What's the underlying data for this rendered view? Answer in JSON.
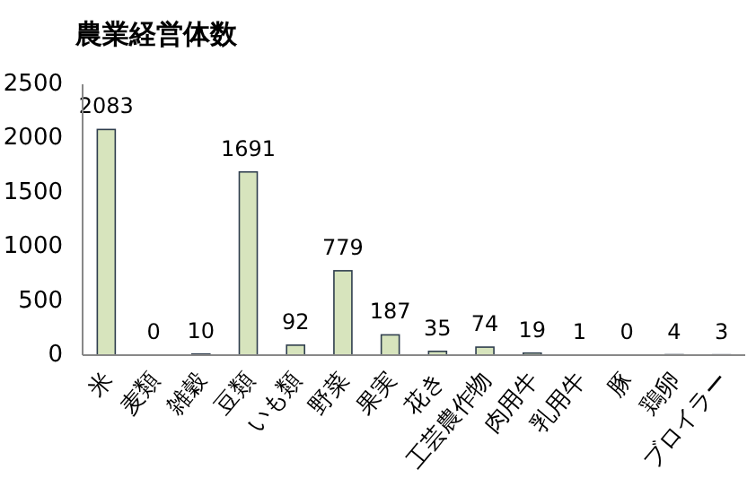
{
  "chart_data": {
    "type": "bar",
    "title": "農業経営体数",
    "categories": [
      "米",
      "麦類",
      "雑穀",
      "豆類",
      "いも類",
      "野菜",
      "果実",
      "花き",
      "工芸農作物",
      "肉用牛",
      "乳用牛",
      "豚",
      "鶏卵",
      "ブロイラー"
    ],
    "values": [
      2083,
      0,
      10,
      1691,
      92,
      779,
      187,
      35,
      74,
      19,
      1,
      0,
      4,
      3
    ],
    "color": "#d7e4bd",
    "ylim": [
      0,
      2500
    ],
    "yticks": [
      0,
      500,
      1000,
      1500,
      2000,
      2500
    ],
    "data_labels": true,
    "grid": false
  }
}
